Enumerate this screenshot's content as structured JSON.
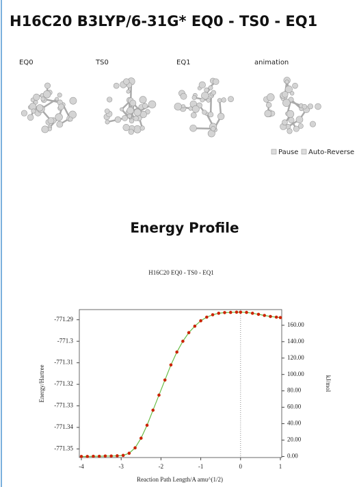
{
  "header": {
    "title": "H16C20 B3LYP/6-31G* EQ0 - TS0 - EQ1"
  },
  "panels": [
    "EQ0",
    "TS0",
    "EQ1",
    "animation"
  ],
  "controls": {
    "pause": "Pause",
    "auto_reverse": "Auto-Reverse"
  },
  "section": {
    "title": "Energy Profile"
  },
  "chart_data": {
    "type": "line",
    "title": "H16C20   EQ0 - TS0 - EQ1",
    "x_label": "Reaction Path Length/A amu^(1/2)",
    "y_label": "Energy/Hartree",
    "y2_label": "kJ/mol",
    "x": [
      -4,
      -3.85,
      -3.7,
      -3.55,
      -3.4,
      -3.25,
      -3.1,
      -2.95,
      -2.8,
      -2.65,
      -2.5,
      -2.35,
      -2.2,
      -2.05,
      -1.9,
      -1.75,
      -1.6,
      -1.45,
      -1.3,
      -1.15,
      -1.0,
      -0.85,
      -0.7,
      -0.55,
      -0.4,
      -0.25,
      -0.1,
      0,
      0.15,
      0.3,
      0.45,
      0.6,
      0.75,
      0.9,
      1.0
    ],
    "series": [
      {
        "color": "#cc2200",
        "line_color": "#66bb44",
        "values": [
          -771.3535,
          -771.3535,
          -771.3534,
          -771.3534,
          -771.3533,
          -771.3533,
          -771.3532,
          -771.353,
          -771.352,
          -771.3495,
          -771.345,
          -771.339,
          -771.332,
          -771.325,
          -771.318,
          -771.311,
          -771.305,
          -771.3,
          -771.296,
          -771.293,
          -771.2905,
          -771.2888,
          -771.2877,
          -771.287,
          -771.2867,
          -771.2866,
          -771.2865,
          -771.2865,
          -771.2866,
          -771.287,
          -771.2875,
          -771.288,
          -771.2885,
          -771.2888,
          -771.289
        ]
      }
    ],
    "xlim": [
      -4,
      1
    ],
    "xticks": [
      -4,
      -3,
      -2,
      -1,
      0,
      1
    ],
    "ylim": [
      -771.354,
      -771.2853
    ],
    "yticks": [
      -771.29,
      -771.3,
      -771.31,
      -771.32,
      -771.33,
      -771.34,
      -771.35
    ],
    "y2lim": [
      -1.3,
      179.1
    ],
    "y2ticks": [
      {
        "value": 0,
        "label": "0.00"
      },
      {
        "value": 20,
        "label": "20.00"
      },
      {
        "value": 40,
        "label": "40.00"
      },
      {
        "value": 60,
        "label": "60.00"
      },
      {
        "value": 80,
        "label": "80.00"
      },
      {
        "value": 100,
        "label": "100.00"
      },
      {
        "value": 120,
        "label": "120.00"
      },
      {
        "value": 140,
        "label": "140.00"
      },
      {
        "value": 160,
        "label": "160.00"
      }
    ],
    "vline_x": 0
  }
}
